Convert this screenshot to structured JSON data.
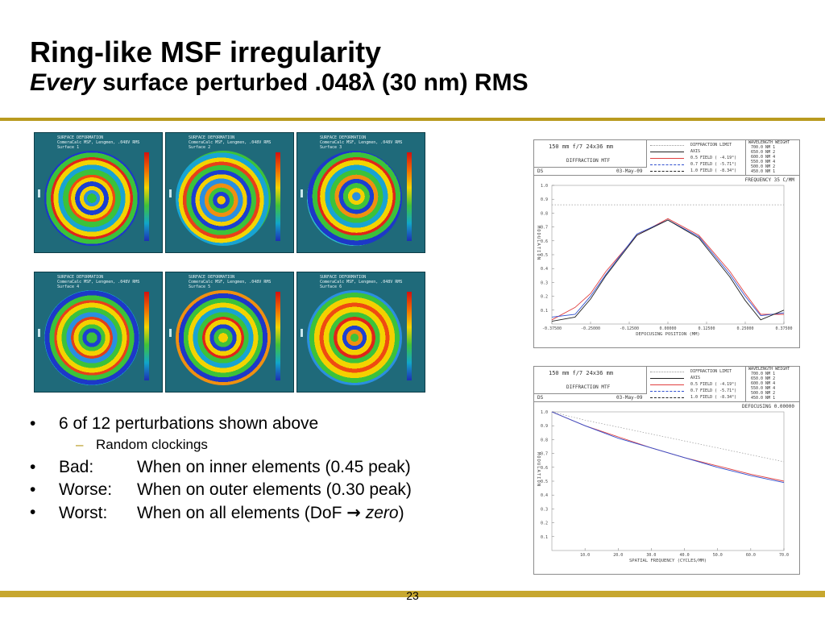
{
  "slide": {
    "title_line1": "Ring-like MSF irregularity",
    "title_line2_em": "Every",
    "title_line2_rest": " surface perturbed .048λ (30 nm) RMS",
    "page_number": "23"
  },
  "bullets": {
    "b1": "6 of 12 perturbations shown above",
    "b1_sub": "Random clockings",
    "b2_label": "Bad:",
    "b2_text": "When on inner elements (0.45 peak)",
    "b3_label": "Worse:",
    "b3_text": "When on outer elements (0.30 peak)",
    "b4_label": "Worst:",
    "b4_text_pre": "When on all elements (DoF ",
    "b4_arrow": "→",
    "b4_text_em": "zero",
    "b4_text_post": ")"
  },
  "colors": {
    "accent_gold": "#b99a1f",
    "curve_red": "#e04040",
    "curve_blue": "#3050d0",
    "curve_black": "#222222",
    "limit_gray": "#999999"
  },
  "deformation_maps": [
    {
      "hdr1": "SURFACE DEFORMATION",
      "hdr2": "ComeraCalc MSF, Lengmen, .048V RMS",
      "hdr3": "Surface 1"
    },
    {
      "hdr1": "SURFACE DEFORMATION",
      "hdr2": "ComeraCalc MSF, Lengmen, .048V RMS",
      "hdr3": "Surface 2"
    },
    {
      "hdr1": "SURFACE DEFORMATION",
      "hdr2": "ComeraCalc MSF, Lengmen, .048V RMS",
      "hdr3": "Surface 3"
    },
    {
      "hdr1": "SURFACE DEFORMATION",
      "hdr2": "ComeraCalc MSF, Lengmen, .048V RMS",
      "hdr3": "Surface 4"
    },
    {
      "hdr1": "SURFACE DEFORMATION",
      "hdr2": "ComeraCalc MSF, Lengmen, .048V RMS",
      "hdr3": "Surface 5"
    },
    {
      "hdr1": "SURFACE DEFORMATION",
      "hdr2": "ComeraCalc MSF, Lengmen, .048V RMS",
      "hdr3": "Surface 6"
    }
  ],
  "plots": [
    {
      "lens": "150 mm f/7 24x36 mm",
      "subtitle": "DIFFRACTION MTF",
      "ds": "DS",
      "date": "03-May-09",
      "legend": [
        "DIFFRACTION LIMIT",
        "AXIS",
        "0.5 FIELD ( -4.19°)",
        "0.7 FIELD ( -5.71°)",
        "1.0 FIELD ( -8.34°)"
      ],
      "wl_header": "WAVELENGTH  WEIGHT",
      "wavelengths": [
        "700.0 NM    1",
        "650.0 NM    2",
        "600.0 NM    4",
        "550.0 NM    4",
        "500.0 NM    2",
        "450.0 NM    1"
      ],
      "info": "FREQUENCY  35 C/MM",
      "ylabel": "MODULATION",
      "xlabel": "DEFOCUSING POSITION (MM)",
      "xticks": [
        "-0.37500",
        "-0.25000",
        "-0.12500",
        "0.00000",
        "0.12500",
        "0.25000",
        "0.37500"
      ],
      "yticks": [
        "0.1",
        "0.2",
        "0.3",
        "0.4",
        "0.5",
        "0.6",
        "0.7",
        "0.8",
        "0.9",
        "1.0"
      ]
    },
    {
      "lens": "150 mm f/7 24x36 mm",
      "subtitle": "DIFFRACTION MTF",
      "ds": "DS",
      "date": "03-May-09",
      "legend": [
        "DIFFRACTION LIMIT",
        "AXIS",
        "0.5 FIELD ( -4.19°)",
        "0.7 FIELD ( -5.71°)",
        "1.0 FIELD ( -8.34°)"
      ],
      "wl_header": "WAVELENGTH  WEIGHT",
      "wavelengths": [
        "700.0 NM    1",
        "650.0 NM    2",
        "600.0 NM    4",
        "550.0 NM    4",
        "500.0 NM    2",
        "450.0 NM    1"
      ],
      "info": "DEFOCUSING 0.00000",
      "ylabel": "MODULATION",
      "xlabel": "SPATIAL FREQUENCY (CYCLES/MM)",
      "xticks": [
        "10.0",
        "20.0",
        "30.0",
        "40.0",
        "50.0",
        "60.0",
        "70.0"
      ],
      "yticks": [
        "0.1",
        "0.2",
        "0.3",
        "0.4",
        "0.5",
        "0.6",
        "0.7",
        "0.8",
        "0.9",
        "1.0"
      ]
    }
  ],
  "chart_data": [
    {
      "type": "line",
      "title": "DIFFRACTION MTF",
      "xlabel": "DEFOCUSING POSITION (MM)",
      "ylabel": "MODULATION",
      "xlim": [
        -0.375,
        0.375
      ],
      "ylim": [
        0.0,
        1.0
      ],
      "series": [
        {
          "x": [
            -0.375,
            -0.3,
            -0.2,
            -0.1,
            0.0,
            0.1,
            0.2,
            0.3,
            0.375
          ],
          "values": [
            0.86,
            0.86,
            0.86,
            0.86,
            0.86,
            0.86,
            0.86,
            0.86,
            0.86
          ]
        },
        {
          "x": [
            -0.375,
            -0.3,
            -0.25,
            -0.2,
            -0.1,
            0.0,
            0.1,
            0.2,
            0.25,
            0.3,
            0.375
          ],
          "values": [
            0.03,
            0.12,
            0.22,
            0.38,
            0.64,
            0.76,
            0.64,
            0.38,
            0.22,
            0.07,
            0.07
          ]
        },
        {
          "x": [
            -0.375,
            -0.3,
            -0.25,
            -0.2,
            -0.1,
            0.0,
            0.1,
            0.2,
            0.25,
            0.3,
            0.375
          ],
          "values": [
            0.05,
            0.07,
            0.2,
            0.36,
            0.65,
            0.75,
            0.63,
            0.36,
            0.2,
            0.06,
            0.08
          ]
        },
        {
          "x": [
            -0.375,
            -0.3,
            -0.25,
            -0.2,
            -0.1,
            0.0,
            0.1,
            0.2,
            0.25,
            0.3,
            0.375
          ],
          "values": [
            0.02,
            0.05,
            0.18,
            0.35,
            0.64,
            0.75,
            0.62,
            0.34,
            0.17,
            0.03,
            0.1
          ]
        }
      ]
    },
    {
      "type": "line",
      "title": "DIFFRACTION MTF",
      "xlabel": "SPATIAL FREQUENCY (CYCLES/MM)",
      "ylabel": "MODULATION",
      "xlim": [
        0,
        70
      ],
      "ylim": [
        0.0,
        1.0
      ],
      "series": [
        {
          "x": [
            0,
            10,
            20,
            30,
            40,
            50,
            60,
            70
          ],
          "values": [
            1.0,
            0.94,
            0.89,
            0.84,
            0.79,
            0.74,
            0.69,
            0.64
          ]
        },
        {
          "x": [
            0,
            10,
            20,
            30,
            40,
            50,
            60,
            70
          ],
          "values": [
            1.0,
            0.9,
            0.82,
            0.74,
            0.67,
            0.61,
            0.55,
            0.5
          ]
        },
        {
          "x": [
            0,
            10,
            20,
            30,
            40,
            50,
            60,
            70
          ],
          "values": [
            1.0,
            0.9,
            0.81,
            0.74,
            0.67,
            0.6,
            0.54,
            0.49
          ]
        }
      ]
    }
  ]
}
